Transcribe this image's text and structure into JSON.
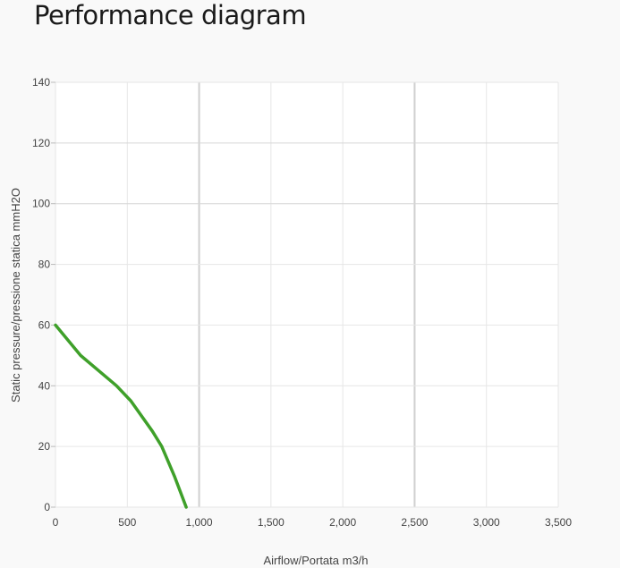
{
  "page": {
    "title": "Performance diagram"
  },
  "chart_data": {
    "type": "line",
    "title": "",
    "xlabel": "Airflow/Portata m3/h",
    "ylabel": "Static pressure/pressione statica mmH2O",
    "xlim": [
      0,
      3500
    ],
    "ylim": [
      0,
      140
    ],
    "xticks": [
      0,
      500,
      1000,
      1500,
      2000,
      2500,
      3000,
      3500
    ],
    "xtick_labels": [
      "0",
      "500",
      "1,000",
      "1,500",
      "2,000",
      "2,500",
      "3,000",
      "3,500"
    ],
    "yticks": [
      0,
      20,
      40,
      60,
      80,
      100,
      120,
      140
    ],
    "ytick_labels": [
      "0",
      "20",
      "40",
      "60",
      "80",
      "100",
      "120",
      "140"
    ],
    "grid": true,
    "series": [
      {
        "color": "#3fa02a",
        "x": [
          0,
          175,
          300,
          425,
          525,
          675,
          740,
          830,
          910
        ],
        "y": [
          60,
          50,
          45,
          40,
          35,
          25,
          20,
          10,
          0
        ]
      }
    ]
  }
}
